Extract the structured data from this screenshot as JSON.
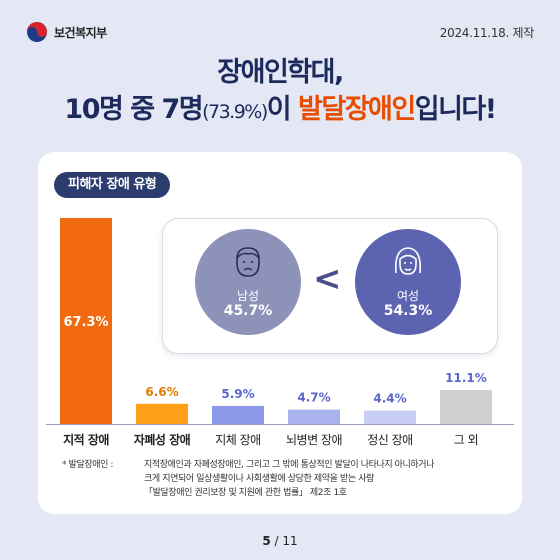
{
  "header": {
    "ministry": "보건복지부",
    "date": "2024.11.18. 제작"
  },
  "title": {
    "line1": "장애인학대,",
    "line2_a": "10명 중 7명",
    "line2_b": "(73.9%)",
    "line2_c": "이 ",
    "line2_d": "발달장애인",
    "line2_e": "입니다!"
  },
  "section_label": "피해자 장애 유형",
  "gender": {
    "male_label": "남성",
    "male_value": "45.7%",
    "female_label": "여성",
    "female_value": "54.3%",
    "comparator": "<"
  },
  "chart_data": {
    "type": "bar",
    "categories": [
      "지적 장애",
      "자폐성 장애",
      "지체 장애",
      "뇌병변 장애",
      "정신 장애",
      "그 외"
    ],
    "values": [
      67.3,
      6.6,
      5.9,
      4.7,
      4.4,
      11.1
    ],
    "value_labels": [
      "67.3%",
      "6.6%",
      "5.9%",
      "4.7%",
      "4.4%",
      "11.1%"
    ],
    "colors": [
      "#f26a10",
      "#ffa019",
      "#8c98e8",
      "#aab2ee",
      "#c9cef6",
      "#d0d0d0"
    ],
    "label_colors": [
      "#ffffff",
      "#e07a00",
      "#5a66c8",
      "#5a66c8",
      "#5a66c8",
      "#5a66c8"
    ],
    "bold_categories": [
      true,
      true,
      false,
      false,
      false,
      false
    ],
    "ylim": [
      0,
      67.3
    ]
  },
  "footnote": {
    "label": "* 발달장애인 :",
    "line1": "지적장애인과 자폐성장애인, 그리고 그 밖에 통상적인 발달이 나타나지 아니하거나",
    "line2": "크게 지연되어 일상생활이나 사회생활에 상당한 제약을 받는 사람",
    "line3": "「발달장애인 권리보장 및 지원에 관한 법률」 제2조 1호"
  },
  "pager": {
    "current": "5",
    "total": "/ 11"
  }
}
